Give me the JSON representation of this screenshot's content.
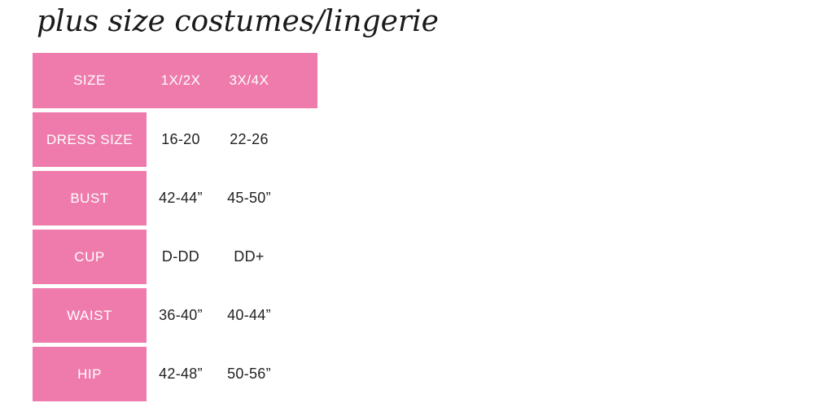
{
  "title": "plus size costumes/lingerie",
  "colors": {
    "pink": "#ee7bac",
    "value_text": "#231f20",
    "label_text": "#ffffff",
    "page_background": "#ffffff",
    "title_text": "#1a1a1a"
  },
  "chart_data": {
    "type": "table",
    "title": "plus size costumes/lingerie",
    "columns": [
      "SIZE",
      "1X/2X",
      "3X/4X"
    ],
    "rows": [
      [
        "DRESS SIZE",
        "16-20",
        "22-26"
      ],
      [
        "BUST",
        "42-44”",
        "45-50”"
      ],
      [
        "CUP",
        "D-DD",
        "DD+"
      ],
      [
        "WAIST",
        "36-40”",
        "40-44”"
      ],
      [
        "HIP",
        "42-48”",
        "50-56”"
      ]
    ],
    "layout_hints": {
      "header_background": "#ee7bac",
      "row_label_background": "#ee7bac",
      "grid": false,
      "legend": "none"
    }
  }
}
